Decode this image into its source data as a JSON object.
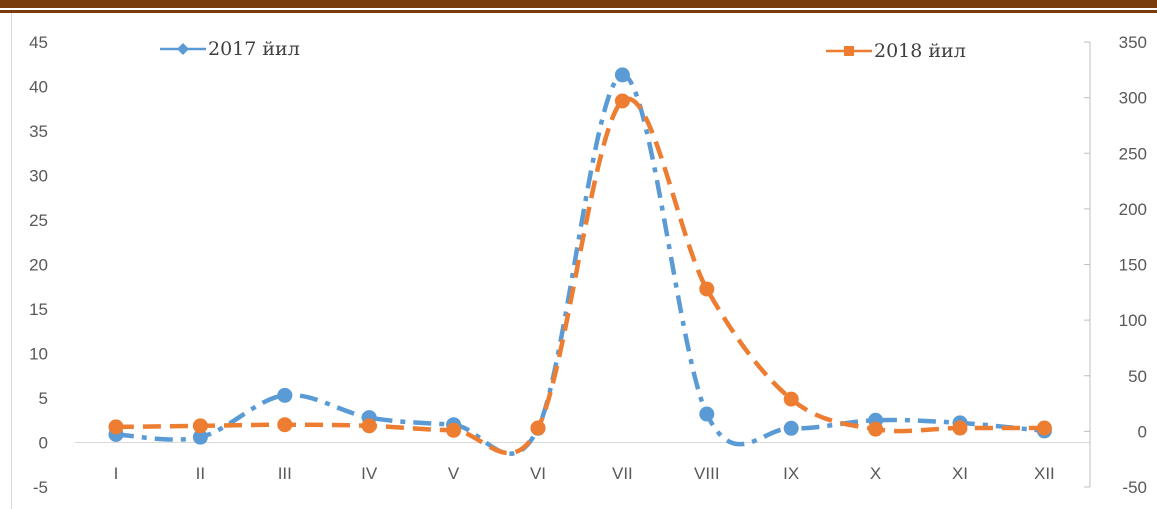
{
  "chart_data": {
    "type": "line",
    "title": "",
    "categories": [
      "I",
      "II",
      "III",
      "IV",
      "V",
      "VI",
      "VII",
      "VIII",
      "IX",
      "X",
      "XI",
      "XII"
    ],
    "series": [
      {
        "name": "2017 йил",
        "axis": "left",
        "color": "#5b9bd5",
        "dash": "dash-dot",
        "values": [
          0.9,
          0.6,
          5.3,
          2.8,
          2.0,
          1.6,
          41.3,
          3.2,
          1.6,
          2.5,
          2.2,
          1.3
        ]
      },
      {
        "name": "2018 йил",
        "axis": "right",
        "color": "#ed7d31",
        "dash": "dashed",
        "values": [
          4,
          5,
          6,
          5,
          1,
          3,
          297,
          128,
          29,
          2,
          3,
          3
        ]
      }
    ],
    "y_left": {
      "min": -5,
      "max": 45,
      "step": 5,
      "ticks": [
        "45",
        "40",
        "35",
        "30",
        "25",
        "20",
        "15",
        "10",
        "5",
        "0",
        "-5"
      ]
    },
    "y_right": {
      "min": -50,
      "max": 350,
      "step": 50,
      "ticks": [
        "350",
        "300",
        "250",
        "200",
        "150",
        "100",
        "50",
        "0",
        "-50"
      ]
    },
    "grid": false,
    "legend_position": "top"
  }
}
